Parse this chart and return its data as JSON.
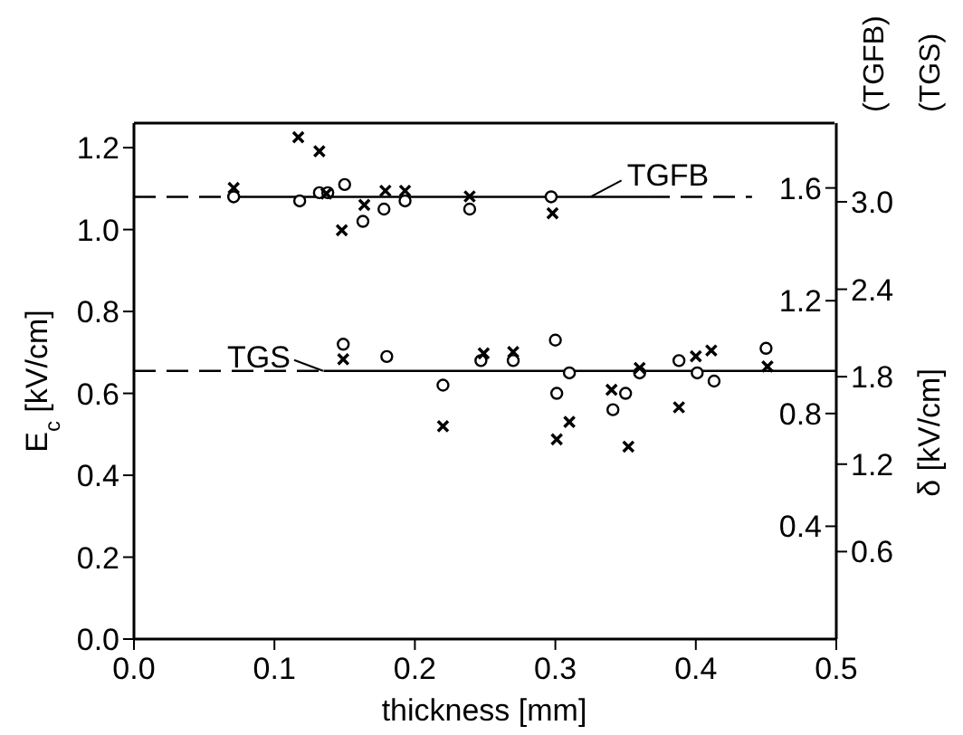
{
  "chart_data": {
    "type": "scatter",
    "xlabel": "thickness [mm]",
    "ylabel": "E$_{c}$ [kV/cm]",
    "y2label": "(TGFB)",
    "y3label": "(TGS)",
    "annotations": [
      {
        "text": "TGFB",
        "x": 0.326,
        "y": 1.08
      },
      {
        "text": "TGS",
        "x": 0.135,
        "y": 0.655
      },
      "δ [kV/cm]"
    ],
    "xlim": [
      0,
      0.5
    ],
    "xticks": [
      {
        "value": 0,
        "label": "0.0"
      },
      {
        "value": 0.1,
        "label": "0.1"
      },
      {
        "value": 0.2,
        "label": "0.2"
      },
      {
        "value": 0.3,
        "label": "0.3"
      },
      {
        "value": 0.4,
        "label": "0.4"
      },
      {
        "value": 0.5,
        "label": "0.5"
      }
    ],
    "ylim": [
      0,
      1.26
    ],
    "yticks": [
      {
        "value": 0,
        "label": "0.0"
      },
      0.2,
      0.4,
      0.6,
      0.8,
      {
        "value": 1,
        "label": "1.0"
      },
      1.2
    ],
    "y2lim": [
      0,
      1.83
    ],
    "y2ticks": [
      0.4,
      0.8,
      1.2,
      1.6
    ],
    "y3lim": [
      0,
      3.54
    ],
    "y3ticks": [
      0.6,
      1.2,
      1.8,
      2.4,
      {
        "value": 3,
        "label": "3.0"
      }
    ],
    "grid": false,
    "legend": false,
    "series": [
      {
        "marker": "circle",
        "color": "#000000",
        "x": [
          0.071,
          0.118,
          0.132,
          0.138,
          0.15,
          0.163,
          0.178,
          0.193,
          0.239,
          0.297
        ],
        "values": [
          1.08,
          1.07,
          1.09,
          1.09,
          1.11,
          1.02,
          1.05,
          1.07,
          1.05,
          1.08
        ]
      },
      {
        "marker": "cross",
        "color": "#000000",
        "axis": "y2",
        "x": [
          0.071,
          0.117,
          0.132,
          0.137,
          0.148,
          0.164,
          0.179,
          0.193,
          0.239,
          0.298
        ],
        "values": [
          1.6,
          1.78,
          1.73,
          1.58,
          1.45,
          1.54,
          1.59,
          1.59,
          1.57,
          1.51
        ]
      },
      {
        "marker": "circle",
        "color": "#000000",
        "x": [
          0.149,
          0.18,
          0.22,
          0.247,
          0.27,
          0.3,
          0.301,
          0.31,
          0.341,
          0.35,
          0.36,
          0.388,
          0.401,
          0.413,
          0.45
        ],
        "values": [
          0.72,
          0.69,
          0.62,
          0.68,
          0.68,
          0.73,
          0.6,
          0.65,
          0.56,
          0.6,
          0.65,
          0.68,
          0.65,
          0.63,
          0.71
        ]
      },
      {
        "marker": "cross",
        "color": "#000000",
        "axis": "y3",
        "x": [
          0.149,
          0.22,
          0.249,
          0.27,
          0.301,
          0.31,
          0.34,
          0.352,
          0.36,
          0.388,
          0.4,
          0.411,
          0.451
        ],
        "values": [
          1.92,
          1.46,
          1.96,
          1.97,
          1.37,
          1.49,
          1.71,
          1.32,
          1.86,
          1.59,
          1.94,
          1.98,
          1.87
        ]
      },
      {
        "type": "line",
        "line_style": "solid",
        "color": "#000000",
        "x": [
          0.07,
          0.366
        ],
        "values": [
          1.08,
          1.08
        ]
      },
      {
        "type": "line",
        "line_style": "dashed",
        "color": "#000000",
        "x": [
          0,
          0.07,
          0.2,
          0.366,
          0.44
        ],
        "values": [
          1.08,
          1.08,
          null,
          1.08,
          1.08
        ]
      },
      {
        "type": "line",
        "line_style": "dashed",
        "color": "#000000",
        "x": [
          0,
          0.135
        ],
        "values": [
          0.655,
          0.655
        ]
      },
      {
        "type": "line",
        "line_style": "solid",
        "color": "#000000",
        "x": [
          0.135,
          0.5
        ],
        "values": [
          0.655,
          0.655
        ]
      }
    ]
  }
}
